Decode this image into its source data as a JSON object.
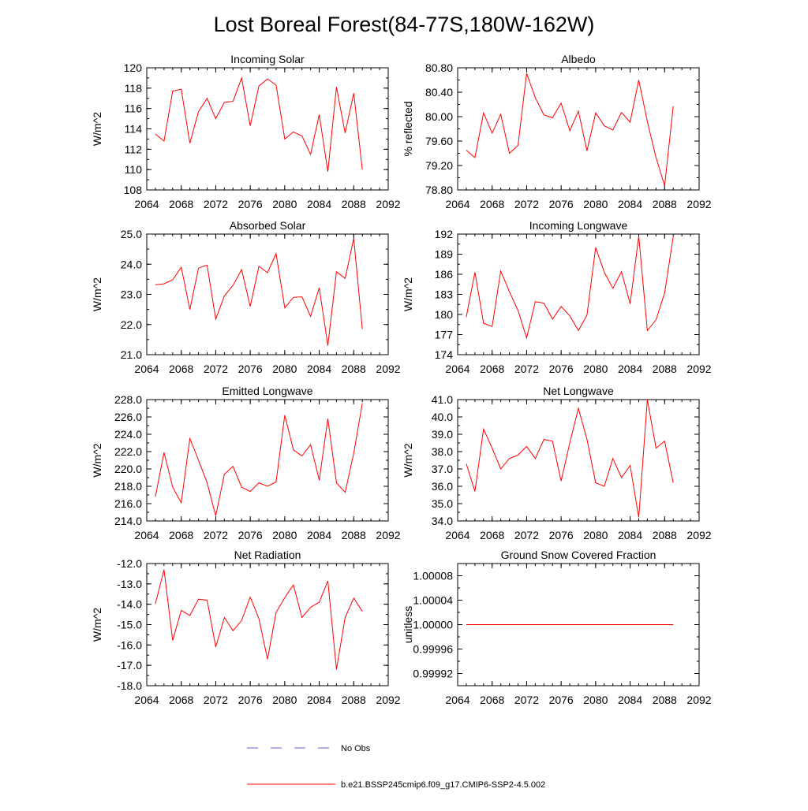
{
  "title": "Lost Boreal Forest(84-77S,180W-162W)",
  "legend": [
    {
      "label": "No Obs",
      "color": "#5c5ccf",
      "style": "dashed"
    },
    {
      "label": "b.e21.BSSP245cmip6.f09_g17.CMIP6-SSP2-4.5.002",
      "color": "#ff0000",
      "style": "solid"
    }
  ],
  "colors": {
    "model": "#ff0000",
    "obs": "#5c5ccf"
  },
  "chart_data": [
    {
      "type": "line",
      "title": "Incoming Solar",
      "ylabel": "W/m^2",
      "xlim": [
        2064,
        2092
      ],
      "ylim": [
        108,
        120
      ],
      "xticks": [
        "2064",
        "2068",
        "2072",
        "2076",
        "2080",
        "2084",
        "2088",
        "2092"
      ],
      "yticks": [
        "108",
        "110",
        "112",
        "114",
        "116",
        "118",
        "120"
      ],
      "x": [
        2065,
        2066,
        2067,
        2068,
        2069,
        2070,
        2071,
        2072,
        2073,
        2074,
        2075,
        2076,
        2077,
        2078,
        2079,
        2080,
        2081,
        2082,
        2083,
        2084,
        2085,
        2086,
        2087,
        2088,
        2089
      ],
      "values": [
        113.5,
        112.8,
        117.7,
        117.9,
        112.6,
        115.7,
        117.0,
        115.0,
        116.6,
        116.7,
        119.0,
        114.3,
        118.2,
        118.9,
        118.3,
        113.0,
        113.7,
        113.3,
        111.5,
        115.4,
        109.8,
        118.1,
        113.6,
        117.5,
        110.0
      ]
    },
    {
      "type": "line",
      "title": "Albedo",
      "ylabel": "% reflected",
      "xlim": [
        2064,
        2092
      ],
      "ylim": [
        78.8,
        80.8
      ],
      "xticks": [
        "2064",
        "2068",
        "2072",
        "2076",
        "2080",
        "2084",
        "2088",
        "2092"
      ],
      "yticks": [
        "78.80",
        "79.20",
        "79.60",
        "80.00",
        "80.40",
        "80.80"
      ],
      "x": [
        2065,
        2066,
        2067,
        2068,
        2069,
        2070,
        2071,
        2072,
        2073,
        2074,
        2075,
        2076,
        2077,
        2078,
        2079,
        2080,
        2081,
        2082,
        2083,
        2084,
        2085,
        2086,
        2087,
        2088,
        2089
      ],
      "values": [
        79.45,
        79.33,
        80.06,
        79.73,
        80.04,
        79.4,
        79.53,
        80.71,
        80.31,
        80.03,
        79.98,
        80.22,
        79.77,
        80.09,
        79.44,
        80.06,
        79.85,
        79.78,
        80.07,
        79.91,
        80.6,
        79.92,
        79.33,
        78.87,
        80.17
      ]
    },
    {
      "type": "line",
      "title": "Absorbed Solar",
      "ylabel": "W/m^2",
      "xlim": [
        2064,
        2092
      ],
      "ylim": [
        21.0,
        25.0
      ],
      "xticks": [
        "2064",
        "2068",
        "2072",
        "2076",
        "2080",
        "2084",
        "2088",
        "2092"
      ],
      "yticks": [
        "21.0",
        "22.0",
        "23.0",
        "24.0",
        "25.0"
      ],
      "x": [
        2065,
        2066,
        2067,
        2068,
        2069,
        2070,
        2071,
        2072,
        2073,
        2074,
        2075,
        2076,
        2077,
        2078,
        2079,
        2080,
        2081,
        2082,
        2083,
        2084,
        2085,
        2086,
        2087,
        2088,
        2089
      ],
      "values": [
        23.32,
        23.35,
        23.48,
        23.9,
        22.5,
        23.87,
        23.97,
        22.18,
        22.95,
        23.3,
        23.82,
        22.6,
        23.93,
        23.72,
        24.35,
        22.55,
        22.9,
        22.92,
        22.27,
        23.22,
        21.3,
        23.75,
        23.53,
        24.85,
        21.85
      ]
    },
    {
      "type": "line",
      "title": "Incoming Longwave",
      "ylabel": "W/m^2",
      "xlim": [
        2064,
        2092
      ],
      "ylim": [
        174,
        192
      ],
      "xticks": [
        "2064",
        "2068",
        "2072",
        "2076",
        "2080",
        "2084",
        "2088",
        "2092"
      ],
      "yticks": [
        "174",
        "177",
        "180",
        "183",
        "186",
        "189",
        "192"
      ],
      "x": [
        2065,
        2066,
        2067,
        2068,
        2069,
        2070,
        2071,
        2072,
        2073,
        2074,
        2075,
        2076,
        2077,
        2078,
        2079,
        2080,
        2081,
        2082,
        2083,
        2084,
        2085,
        2086,
        2087,
        2088,
        2089
      ],
      "values": [
        179.6,
        186.3,
        178.7,
        178.2,
        186.5,
        183.4,
        180.6,
        176.5,
        181.9,
        181.7,
        179.3,
        181.2,
        179.8,
        177.6,
        179.9,
        190.0,
        186.3,
        183.9,
        186.4,
        181.6,
        191.7,
        177.6,
        179.2,
        183.2,
        191.6
      ]
    },
    {
      "type": "line",
      "title": "Emitted Longwave",
      "ylabel": "W/m^2",
      "xlim": [
        2064,
        2092
      ],
      "ylim": [
        214,
        228
      ],
      "xticks": [
        "2064",
        "2068",
        "2072",
        "2076",
        "2080",
        "2084",
        "2088",
        "2092"
      ],
      "yticks": [
        "214.0",
        "216.0",
        "218.0",
        "220.0",
        "222.0",
        "224.0",
        "226.0",
        "228.0"
      ],
      "x": [
        2065,
        2066,
        2067,
        2068,
        2069,
        2070,
        2071,
        2072,
        2073,
        2074,
        2075,
        2076,
        2077,
        2078,
        2079,
        2080,
        2081,
        2082,
        2083,
        2084,
        2085,
        2086,
        2087,
        2088,
        2089
      ],
      "values": [
        216.8,
        221.9,
        217.9,
        216.1,
        223.5,
        221.0,
        218.4,
        214.6,
        219.4,
        220.3,
        217.9,
        217.4,
        218.4,
        218.0,
        218.5,
        226.2,
        222.2,
        221.5,
        222.8,
        218.7,
        225.8,
        218.4,
        217.3,
        221.8,
        227.6
      ]
    },
    {
      "type": "line",
      "title": "Net Longwave",
      "ylabel": "W/m^2",
      "xlim": [
        2064,
        2092
      ],
      "ylim": [
        34.0,
        41.0
      ],
      "xticks": [
        "2064",
        "2068",
        "2072",
        "2076",
        "2080",
        "2084",
        "2088",
        "2092"
      ],
      "yticks": [
        "34.0",
        "35.0",
        "36.0",
        "37.0",
        "38.0",
        "39.0",
        "40.0",
        "41.0"
      ],
      "x": [
        2065,
        2066,
        2067,
        2068,
        2069,
        2070,
        2071,
        2072,
        2073,
        2074,
        2075,
        2076,
        2077,
        2078,
        2079,
        2080,
        2081,
        2082,
        2083,
        2084,
        2085,
        2086,
        2087,
        2088,
        2089
      ],
      "values": [
        37.3,
        35.7,
        39.3,
        38.2,
        37.0,
        37.6,
        37.8,
        38.3,
        37.6,
        38.7,
        38.6,
        36.3,
        38.5,
        40.5,
        38.7,
        36.2,
        36.0,
        37.6,
        36.5,
        37.2,
        34.2,
        41.0,
        38.2,
        38.6,
        36.2
      ]
    },
    {
      "type": "line",
      "title": "Net Radiation",
      "ylabel": "W/m^2",
      "xlim": [
        2064,
        2092
      ],
      "ylim": [
        -18.0,
        -12.0
      ],
      "xticks": [
        "2064",
        "2068",
        "2072",
        "2076",
        "2080",
        "2084",
        "2088",
        "2092"
      ],
      "yticks": [
        "-18.0",
        "-17.0",
        "-16.0",
        "-15.0",
        "-14.0",
        "-13.0",
        "-12.0"
      ],
      "x": [
        2065,
        2066,
        2067,
        2068,
        2069,
        2070,
        2071,
        2072,
        2073,
        2074,
        2075,
        2076,
        2077,
        2078,
        2079,
        2080,
        2081,
        2082,
        2083,
        2084,
        2085,
        2086,
        2087,
        2088,
        2089
      ],
      "values": [
        -13.98,
        -12.3,
        -15.78,
        -14.3,
        -14.55,
        -13.75,
        -13.8,
        -16.1,
        -14.65,
        -15.3,
        -14.8,
        -13.65,
        -14.7,
        -16.7,
        -14.4,
        -13.68,
        -13.05,
        -14.65,
        -14.15,
        -13.9,
        -12.85,
        -17.2,
        -14.65,
        -13.7,
        -14.35
      ]
    },
    {
      "type": "line",
      "title": "Ground Snow Covered Fraction",
      "ylabel": "unitless",
      "xlim": [
        2064,
        2092
      ],
      "ylim": [
        0.9999,
        1.0001
      ],
      "xticks": [
        "2064",
        "2068",
        "2072",
        "2076",
        "2080",
        "2084",
        "2088",
        "2092"
      ],
      "yticks": [
        "0.99992",
        "0.99996",
        "1.00000",
        "1.00004",
        "1.00008"
      ],
      "x": [
        2065,
        2066,
        2067,
        2068,
        2069,
        2070,
        2071,
        2072,
        2073,
        2074,
        2075,
        2076,
        2077,
        2078,
        2079,
        2080,
        2081,
        2082,
        2083,
        2084,
        2085,
        2086,
        2087,
        2088,
        2089
      ],
      "values": [
        1,
        1,
        1,
        1,
        1,
        1,
        1,
        1,
        1,
        1,
        1,
        1,
        1,
        1,
        1,
        1,
        1,
        1,
        1,
        1,
        1,
        1,
        1,
        1,
        1
      ]
    }
  ]
}
